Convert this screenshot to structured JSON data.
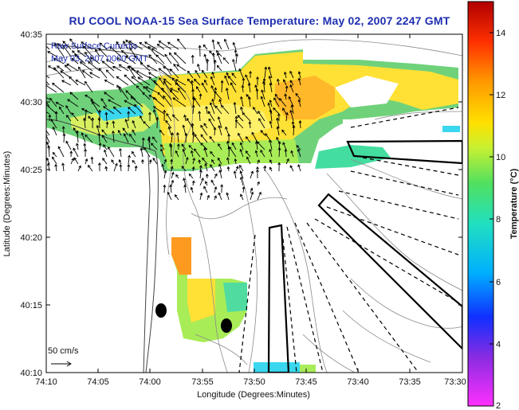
{
  "title": "RU COOL  NOAA-15  Sea Surface Temperature:  May 02, 2007 2247 GMT",
  "overlay_lines": [
    "Raw Surface Currents",
    "May 03, 2007 0000 GMT"
  ],
  "scale_label": "50 cm/s",
  "x_axis": {
    "label": "Longitude (Degrees:Minutes)",
    "ticks": [
      "74:10",
      "74:05",
      "74:00",
      "73:55",
      "73:50",
      "73:45",
      "73:40",
      "73:35",
      "73:30"
    ]
  },
  "y_axis": {
    "label": "Latitude (Degrees:Minutes)",
    "ticks": [
      "40:35",
      "40:30",
      "40:25",
      "40:20",
      "40:15",
      "40:10"
    ]
  },
  "colorbar": {
    "label": "Temperature (°C)",
    "min": 2,
    "max": 15,
    "ticks": [
      "14",
      "12",
      "10",
      "8",
      "6",
      "4",
      "2"
    ]
  },
  "colors": {
    "title": "#1f2fb0",
    "overlay": "#1f2fb0"
  },
  "chart_data": {
    "type": "heatmap",
    "title": "RU COOL  NOAA-15  Sea Surface Temperature:  May 02, 2007 2247 GMT",
    "xlabel": "Longitude (Degrees:Minutes)",
    "ylabel": "Latitude (Degrees:Minutes)",
    "xlim": [
      "74:10",
      "73:30"
    ],
    "ylim": [
      "40:10",
      "40:35"
    ],
    "colorbar_range": [
      2,
      15
    ],
    "colorbar_label": "Temperature (°C)",
    "current_scale": "50 cm/s"
  }
}
